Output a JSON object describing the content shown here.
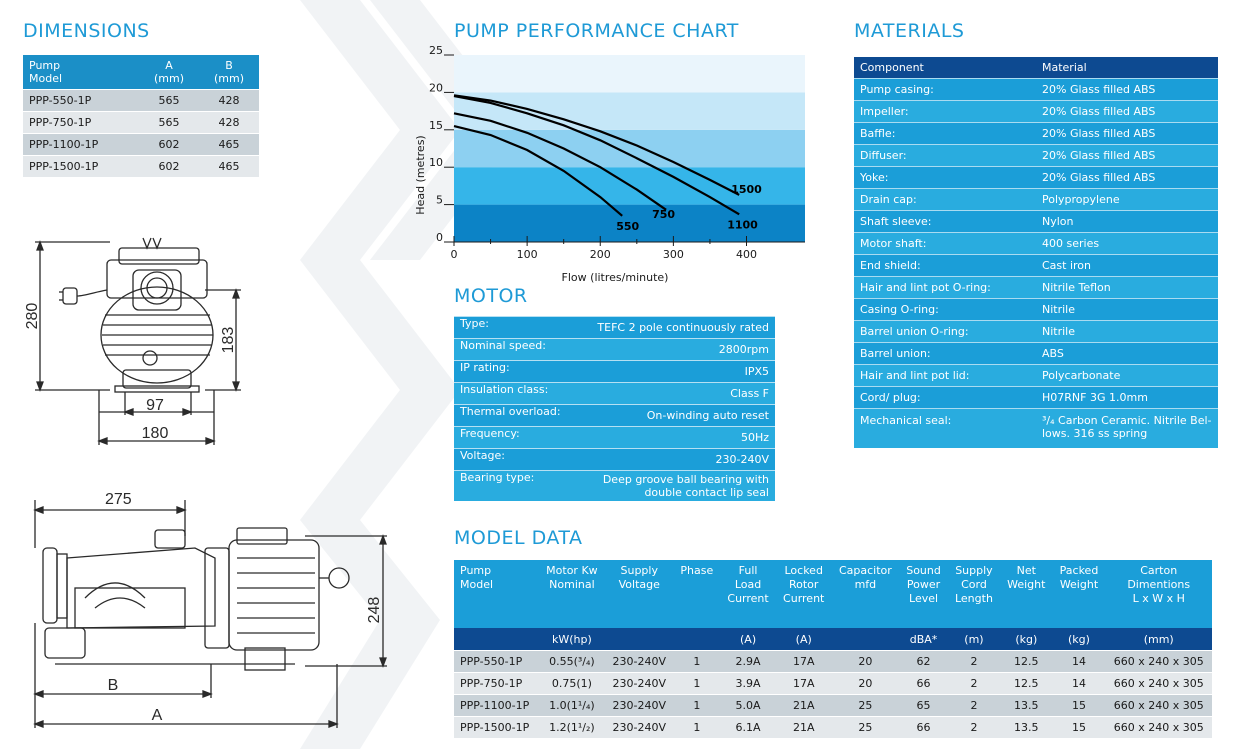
{
  "sections": {
    "dimensions": "DIMENSIONS",
    "chart": "PUMP PERFORMANCE CHART",
    "materials": "MATERIALS",
    "motor": "MOTOR",
    "model_data": "MODEL DATA"
  },
  "dimensions_table": {
    "headers": [
      {
        "line1": "Pump",
        "line2": "Model"
      },
      {
        "line1": "A",
        "line2": "(mm)"
      },
      {
        "line1": "B",
        "line2": "(mm)"
      }
    ],
    "rows": [
      [
        "PPP-550-1P",
        "565",
        "428"
      ],
      [
        "PPP-750-1P",
        "565",
        "428"
      ],
      [
        "PPP-1100-1P",
        "602",
        "465"
      ],
      [
        "PPP-1500-1P",
        "602",
        "465"
      ]
    ]
  },
  "drawing1": {
    "height": "280",
    "motor_height": "183",
    "base_inner": "97",
    "base_outer": "180"
  },
  "drawing2": {
    "top_len": "275",
    "height": "248",
    "b": "B",
    "a": "A"
  },
  "chart_data": {
    "type": "line",
    "title": "PUMP PERFORMANCE CHART",
    "xlabel": "Flow (litres/minute)",
    "ylabel": "Head (metres)",
    "xlim": [
      0,
      480
    ],
    "ylim": [
      0,
      25
    ],
    "x_ticks": [
      "0",
      "100",
      "200",
      "300",
      "400"
    ],
    "y_ticks": [
      "0",
      "5",
      "10",
      "15",
      "20",
      "25"
    ],
    "band_colors": [
      "#0c83c6",
      "#35b5e9",
      "#8dd0f1",
      "#c5e7f8",
      "#eaf5fc"
    ],
    "series": [
      {
        "name": "550",
        "x": [
          0,
          50,
          100,
          150,
          200,
          230
        ],
        "y": [
          15.5,
          14.3,
          12.3,
          9.5,
          6.0,
          3.5
        ]
      },
      {
        "name": "750",
        "x": [
          0,
          50,
          100,
          150,
          200,
          250,
          290
        ],
        "y": [
          17.2,
          16.2,
          14.6,
          12.5,
          10.0,
          7.0,
          4.3
        ]
      },
      {
        "name": "1100",
        "x": [
          0,
          50,
          100,
          150,
          200,
          250,
          300,
          350,
          390
        ],
        "y": [
          19.5,
          18.6,
          17.2,
          15.6,
          13.6,
          11.2,
          8.7,
          6.0,
          3.7
        ]
      },
      {
        "name": "1500",
        "x": [
          0,
          50,
          100,
          150,
          200,
          250,
          300,
          350,
          390
        ],
        "y": [
          19.6,
          18.9,
          17.8,
          16.4,
          14.8,
          12.9,
          10.7,
          8.3,
          6.3
        ]
      }
    ],
    "series_labels": [
      "550",
      "750",
      "1100",
      "1500"
    ]
  },
  "motor_table": [
    {
      "label": "Type:",
      "value": "TEFC 2 pole continuously rated"
    },
    {
      "label": "Nominal speed:",
      "value": "2800rpm"
    },
    {
      "label": "IP rating:",
      "value": "IPX5"
    },
    {
      "label": "Insulation class:",
      "value": "Class F"
    },
    {
      "label": "Thermal overload:",
      "value": "On-winding auto reset"
    },
    {
      "label": "Frequency:",
      "value": "50Hz"
    },
    {
      "label": "Voltage:",
      "value": "230-240V"
    },
    {
      "label": "Bearing type:",
      "value1": "Deep groove ball bearing with",
      "value2": "double contact lip seal"
    }
  ],
  "materials_table": {
    "headers": [
      "Component",
      "Material"
    ],
    "rows": [
      [
        "Pump casing:",
        "20% Glass filled ABS"
      ],
      [
        "Impeller:",
        "20% Glass filled ABS"
      ],
      [
        "Baffle:",
        "20% Glass filled ABS"
      ],
      [
        "Diffuser:",
        "20% Glass filled ABS"
      ],
      [
        "Yoke:",
        "20% Glass filled ABS"
      ],
      [
        "Drain cap:",
        "Polypropylene"
      ],
      [
        "Shaft sleeve:",
        "Nylon"
      ],
      [
        "Motor shaft:",
        "400 series"
      ],
      [
        "End shield:",
        "Cast iron"
      ],
      [
        "Hair and lint pot O-ring:",
        "Nitrile Teflon"
      ],
      [
        "Casing O-ring:",
        "Nitrile"
      ],
      [
        "Barrel union O-ring:",
        "Nitrile"
      ],
      [
        "Barrel union:",
        "ABS"
      ],
      [
        "Hair and lint pot lid:",
        "Polycarbonate"
      ],
      [
        "Cord/ plug:",
        "H07RNF 3G 1.0mm"
      ]
    ],
    "last": {
      "label": "Mechanical seal:",
      "value1": "³/₄ Carbon Ceramic. Nitrile Bel-",
      "value2": "lows. 316 ss spring"
    }
  },
  "model_table": {
    "headers": [
      [
        "Pump",
        "Model",
        ""
      ],
      [
        "Motor Kw",
        "Nominal",
        ""
      ],
      [
        "Supply",
        "Voltage",
        ""
      ],
      [
        "Phase",
        "",
        ""
      ],
      [
        "Full",
        "Load",
        "Current"
      ],
      [
        "Locked",
        "Rotor",
        "Current"
      ],
      [
        "Capacitor",
        "mfd",
        ""
      ],
      [
        "Sound",
        "Power",
        "Level"
      ],
      [
        "Supply",
        "Cord",
        "Length"
      ],
      [
        "Net",
        "Weight",
        ""
      ],
      [
        "Packed",
        "Weight",
        ""
      ],
      [
        "Carton",
        "Dimentions",
        "L x W x H"
      ]
    ],
    "units": [
      "",
      "kW(hp)",
      "",
      "",
      "(A)",
      "(A)",
      "",
      "dBA*",
      "(m)",
      "(kg)",
      "(kg)",
      "(mm)"
    ],
    "rows": [
      [
        "PPP-550-1P",
        "0.55(³/₄)",
        "230-240V",
        "1",
        "2.9A",
        "17A",
        "20",
        "62",
        "2",
        "12.5",
        "14",
        "660 x 240  x 305"
      ],
      [
        "PPP-750-1P",
        "0.75(1)",
        "230-240V",
        "1",
        "3.9A",
        "17A",
        "20",
        "66",
        "2",
        "12.5",
        "14",
        "660 x 240  x 305"
      ],
      [
        "PPP-1100-1P",
        "1.0(1¹/₄)",
        "230-240V",
        "1",
        "5.0A",
        "21A",
        "25",
        "65",
        "2",
        "13.5",
        "15",
        "660 x 240  x 305"
      ],
      [
        "PPP-1500-1P",
        "1.2(1¹/₂)",
        "230-240V",
        "1",
        "6.1A",
        "21A",
        "25",
        "66",
        "2",
        "13.5",
        "15",
        "660 x 240  x 305"
      ]
    ]
  }
}
